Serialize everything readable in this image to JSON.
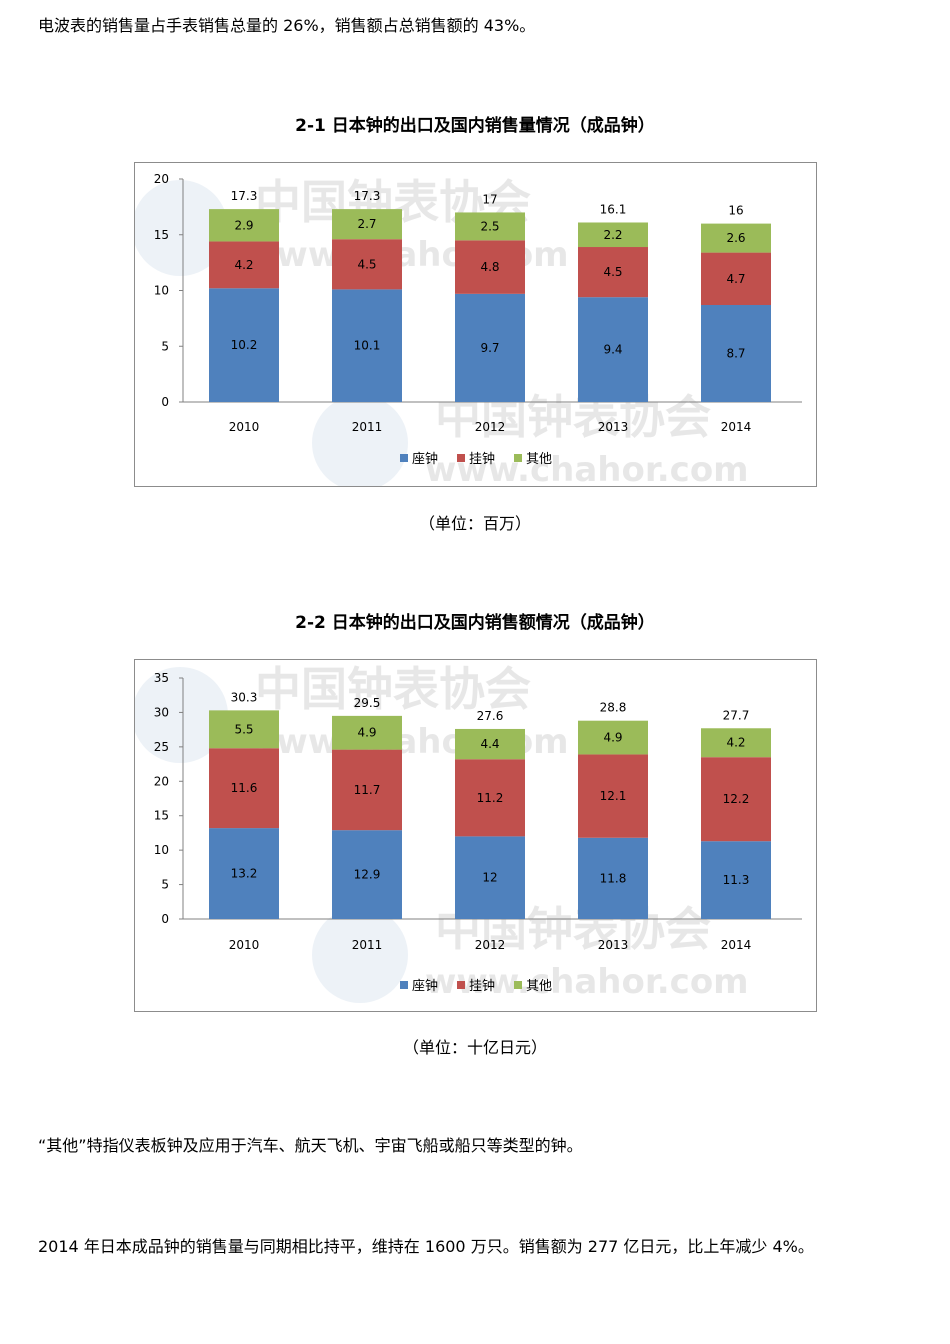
{
  "paragraphs": {
    "p1": "电波表的销售量占手表销售总量的 26%，销售额占总销售额的 43%。",
    "p2": "“其他”特指仪表板钟及应用于汽车、航天飞机、宇宙飞船或船只等类型的钟。",
    "p3": "2014 年日本成品钟的销售量与同期相比持平，维持在 1600 万只。销售额为 277 亿日元，比上年减少 4%。"
  },
  "watermark": {
    "cn": "中国钟表协会",
    "url": "www.chahor.com"
  },
  "colors": {
    "series": [
      "#4f81bd",
      "#c0504d",
      "#9bbb59"
    ],
    "axis": "#808080",
    "border": "#8c8c8c"
  },
  "chart_data": [
    {
      "type": "bar",
      "stacked": true,
      "title": "2-1 日本钟的出口及国内销售量情况（成品钟）",
      "unit_label": "（单位：百万）",
      "categories": [
        "2010",
        "2011",
        "2012",
        "2013",
        "2014"
      ],
      "series": [
        {
          "name": "座钟",
          "values": [
            10.2,
            10.1,
            9.7,
            9.4,
            8.7
          ]
        },
        {
          "name": "挂钟",
          "values": [
            4.2,
            4.5,
            4.8,
            4.5,
            4.7
          ]
        },
        {
          "name": "其他",
          "values": [
            2.9,
            2.7,
            2.5,
            2.2,
            2.6
          ]
        }
      ],
      "totals": [
        17.3,
        17.3,
        17,
        16.1,
        16
      ],
      "ylim": [
        0,
        20
      ],
      "yticks": [
        0,
        5,
        10,
        15,
        20
      ],
      "legend": "bottom",
      "grid": false
    },
    {
      "type": "bar",
      "stacked": true,
      "title": "2-2 日本钟的出口及国内销售额情况（成品钟）",
      "unit_label": "（单位：十亿日元）",
      "categories": [
        "2010",
        "2011",
        "2012",
        "2013",
        "2014"
      ],
      "series": [
        {
          "name": "座钟",
          "values": [
            13.2,
            12.9,
            12,
            11.8,
            11.3
          ]
        },
        {
          "name": "挂钟",
          "values": [
            11.6,
            11.7,
            11.2,
            12.1,
            12.2
          ]
        },
        {
          "name": "其他",
          "values": [
            5.5,
            4.9,
            4.4,
            4.9,
            4.2
          ]
        }
      ],
      "totals": [
        30.3,
        29.5,
        27.6,
        28.8,
        27.7
      ],
      "ylim": [
        0,
        35
      ],
      "yticks": [
        0,
        5,
        10,
        15,
        20,
        25,
        30,
        35
      ],
      "legend": "bottom",
      "grid": false
    }
  ]
}
